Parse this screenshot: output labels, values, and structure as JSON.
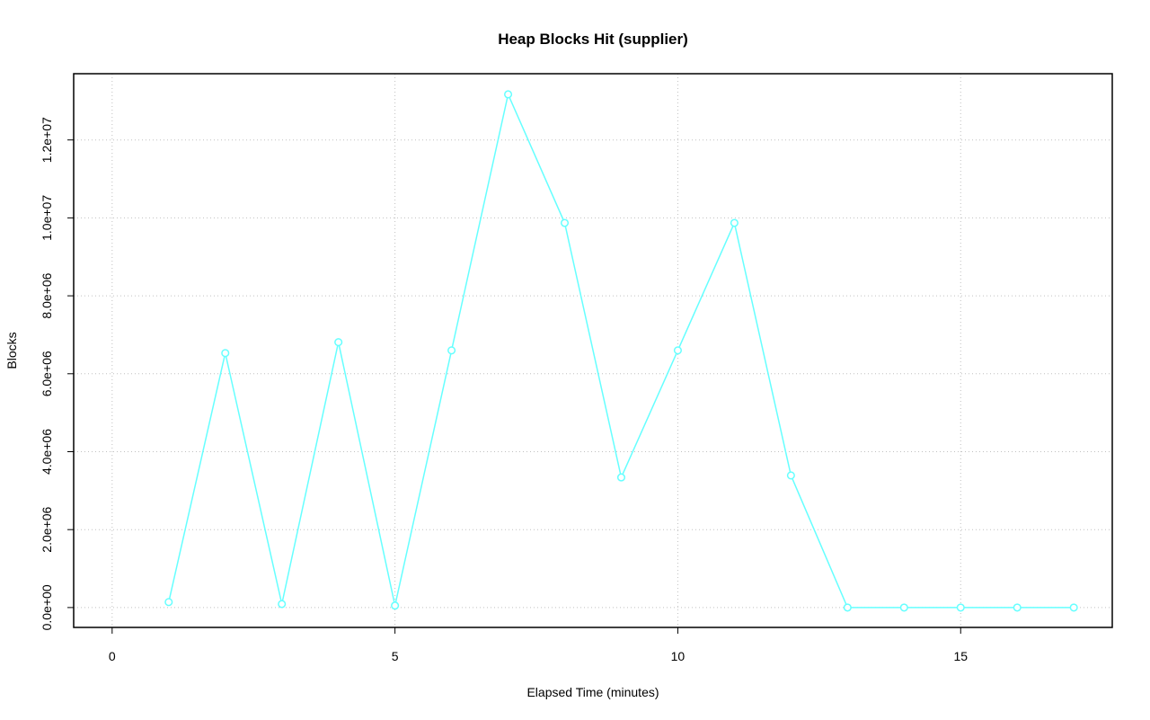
{
  "chart_data": {
    "type": "line",
    "title": "Heap Blocks Hit (supplier)",
    "x_label": "Elapsed Time (minutes)",
    "y_label": "Blocks",
    "x": [
      1,
      2,
      3,
      4,
      5,
      6,
      7,
      8,
      9,
      10,
      11,
      12,
      13,
      14,
      15,
      16,
      17
    ],
    "series": [
      {
        "name": "supplier",
        "color": "#66ffff",
        "values": [
          140000,
          6530000,
          90000,
          6810000,
          50000,
          6600000,
          13170000,
          9870000,
          3340000,
          6600000,
          9870000,
          3390000,
          0,
          0,
          0,
          0,
          0
        ]
      }
    ],
    "xlim": [
      -0.68,
      17.68
    ],
    "xticks": [
      0,
      5,
      10,
      15
    ],
    "ylim": [
      -510000,
      13700000
    ],
    "yticks": [
      {
        "value": 0,
        "label": "0.0e+00"
      },
      {
        "value": 2000000,
        "label": "2.0e+06"
      },
      {
        "value": 4000000,
        "label": "4.0e+06"
      },
      {
        "value": 6000000,
        "label": "6.0e+06"
      },
      {
        "value": 8000000,
        "label": "8.0e+06"
      },
      {
        "value": 10000000,
        "label": "1.0e+07"
      },
      {
        "value": 12000000,
        "label": "1.2e+07"
      }
    ],
    "grid": true
  }
}
